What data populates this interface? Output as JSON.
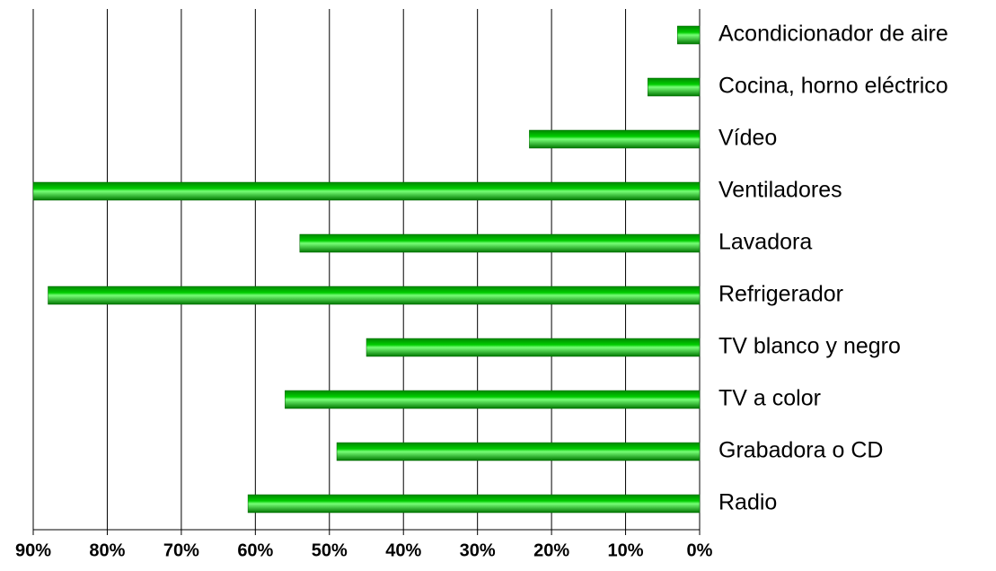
{
  "chart_data": {
    "type": "hbar",
    "categories": [
      "Acondicionador de aire",
      "Cocina, horno eléctrico",
      "Vídeo",
      "Ventiladores",
      "Lavadora",
      "Refrigerador",
      "TV blanco y negro",
      "TV a color",
      "Grabadora o CD",
      "Radio"
    ],
    "values": [
      3,
      7,
      23,
      90,
      54,
      88,
      45,
      56,
      49,
      61
    ],
    "color": "#00cc00",
    "xlim": [
      0,
      90
    ],
    "x_reversed": true,
    "xticks": [
      {
        "value": 90,
        "label": "90%"
      },
      {
        "value": 80,
        "label": "80%"
      },
      {
        "value": 70,
        "label": "70%"
      },
      {
        "value": 60,
        "label": "60%"
      },
      {
        "value": 50,
        "label": "50%"
      },
      {
        "value": 40,
        "label": "40%"
      },
      {
        "value": 30,
        "label": "30%"
      },
      {
        "value": 20,
        "label": "20%"
      },
      {
        "value": 10,
        "label": "10%"
      },
      {
        "value": 0,
        "label": "0%"
      }
    ],
    "grid": true
  }
}
